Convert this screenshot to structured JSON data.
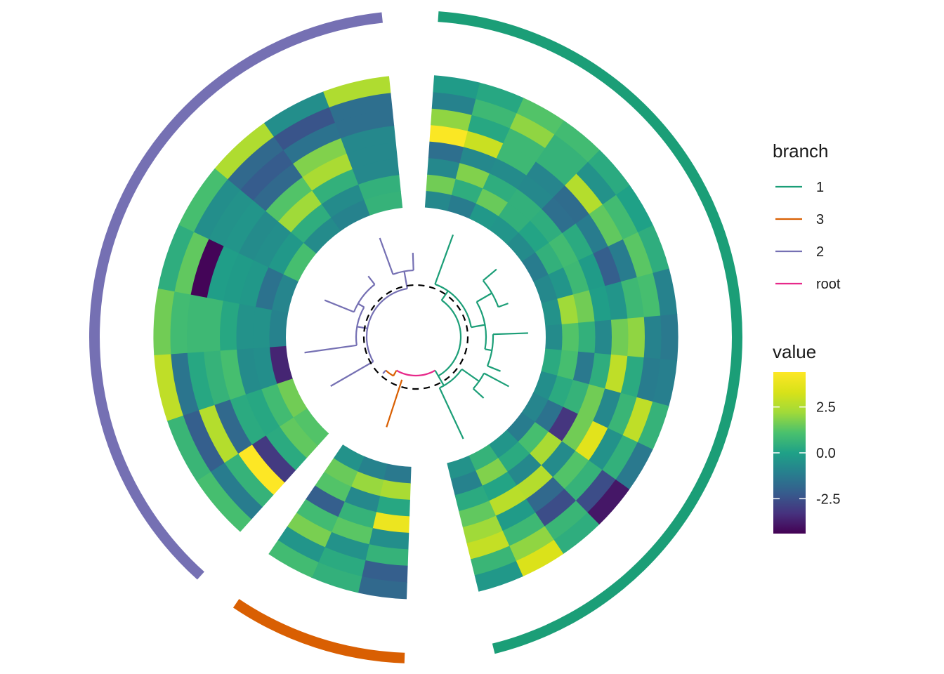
{
  "chart_data": {
    "type": "heatmap",
    "layout": "circular",
    "legend_position": "right",
    "grid": false,
    "branch_legend": {
      "title": "branch",
      "entries": [
        {
          "label": "1",
          "color": "#1b9e77"
        },
        {
          "label": "3",
          "color": "#d95f02"
        },
        {
          "label": "2",
          "color": "#7570b3"
        },
        {
          "label": "root",
          "color": "#e7298a"
        }
      ]
    },
    "value_legend": {
      "title": "value",
      "ticks": [
        "2.5",
        "0.0",
        "-2.5"
      ],
      "tick_values": [
        2.5,
        0.0,
        -2.5
      ],
      "range": [
        -4.4,
        4.4
      ]
    },
    "groups": [
      {
        "branch": "1",
        "color": "#1b9e77",
        "start_deg": 4,
        "end_deg": 166,
        "values": [
          [
            -0.8,
            1.6,
            -0.8,
            -1.6,
            4.3,
            2.0,
            -1.0,
            -0.2
          ],
          [
            -1.2,
            0.4,
            1.8,
            -0.8,
            3.0,
            0.2,
            0.8,
            0.2
          ],
          [
            -0.3,
            1.5,
            0.4,
            -0.7,
            0.8,
            0.8,
            2.0,
            1.2
          ],
          [
            -0.4,
            0.5,
            0.5,
            -0.8,
            -0.9,
            0.6,
            0.6,
            0.9
          ],
          [
            -0.7,
            0.1,
            0.4,
            -1.6,
            -1.7,
            2.6,
            -0.5,
            0.3
          ],
          [
            -1.2,
            0.5,
            0.9,
            0.3,
            -1.2,
            1.4,
            0.9,
            0.0
          ],
          [
            -0.8,
            -0.4,
            0.8,
            -0.2,
            -2.1,
            -1.2,
            1.3,
            0.4
          ],
          [
            -0.5,
            2.2,
            1.6,
            -0.1,
            -0.4,
            0.8,
            1.0,
            -1.0
          ],
          [
            -0.7,
            1.2,
            0.5,
            -0.8,
            1.6,
            2.0,
            -1.0,
            -1.3
          ],
          [
            0.3,
            1.0,
            -1.3,
            0.4,
            2.8,
            0.3,
            -1.2,
            -1.1
          ],
          [
            -0.6,
            0.3,
            0.6,
            1.6,
            -0.8,
            0.7,
            2.8,
            0.6
          ],
          [
            -0.9,
            -1.5,
            -3.2,
            1.6,
            3.6,
            -0.5,
            0.5,
            -1.3
          ],
          [
            -1.2,
            1.0,
            2.4,
            -0.7,
            1.2,
            0.6,
            -2.6,
            -3.9
          ],
          [
            -0.4,
            0.3,
            -0.8,
            2.6,
            -1.8,
            -2.6,
            0.7,
            0.4
          ],
          [
            0.6,
            1.8,
            0.1,
            2.7,
            -0.2,
            0.8,
            2.0,
            3.4
          ],
          [
            -0.5,
            -1.0,
            0.3,
            1.4,
            2.2,
            2.9,
            0.7,
            -0.3
          ]
        ]
      },
      {
        "branch": "3",
        "color": "#d95f02",
        "start_deg": 182,
        "end_deg": 214,
        "values": [
          [
            -1.3,
            2.4,
            0.2,
            3.9,
            -0.6,
            0.6,
            -2.1,
            -1.8
          ],
          [
            -1.0,
            2.1,
            -0.8,
            0.6,
            1.3,
            -0.5,
            0.3,
            0.5
          ],
          [
            -0.5,
            1.5,
            1.2,
            -2.1,
            0.9,
            1.7,
            -0.4,
            0.9
          ]
        ]
      },
      {
        "branch": "2",
        "color": "#7570b3",
        "start_deg": 222,
        "end_deg": 354,
        "values": [
          [
            1.2,
            1.4,
            0.3,
            -3.1,
            4.5,
            0.6,
            -1.2,
            1.0
          ],
          [
            1.6,
            0.9,
            0.2,
            0.3,
            -1.8,
            2.6,
            -2.1,
            0.7
          ],
          [
            -3.6,
            -0.6,
            -0.7,
            1.0,
            0.6,
            0.2,
            -1.4,
            2.8
          ],
          [
            -1.0,
            -0.5,
            -0.5,
            0.2,
            0.8,
            0.8,
            0.9,
            1.6
          ],
          [
            -0.9,
            -1.5,
            -0.3,
            -0.2,
            -0.1,
            -4.3,
            1.4,
            0.4
          ],
          [
            1.0,
            -0.3,
            -0.6,
            -0.7,
            -0.4,
            -0.5,
            -0.6,
            1.0
          ],
          [
            -0.7,
            0.4,
            2.2,
            1.2,
            -1.8,
            -2.2,
            -1.8,
            2.5
          ],
          [
            -1.0,
            -0.7,
            0.5,
            2.4,
            1.8,
            -1.5,
            -2.4,
            -0.6
          ],
          [
            0.6,
            0.5,
            -0.8,
            -0.8,
            -0.8,
            -1.6,
            -1.6,
            2.5
          ]
        ]
      }
    ]
  }
}
